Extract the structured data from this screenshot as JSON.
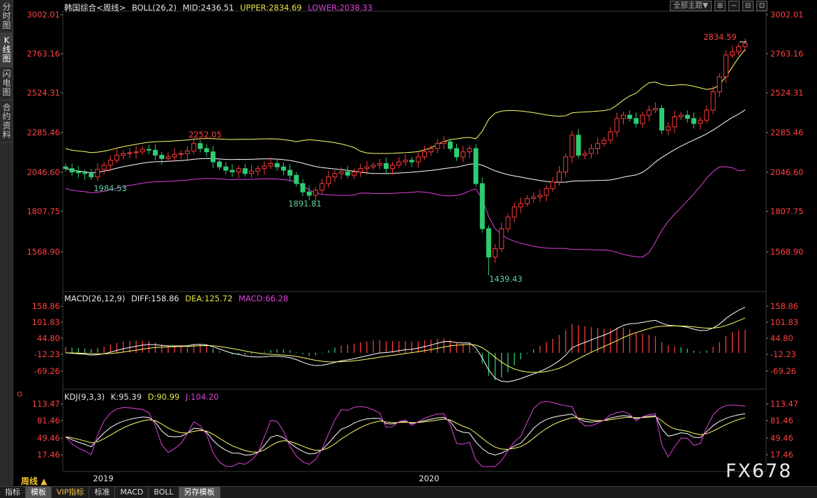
{
  "sidebar": {
    "tabs": [
      {
        "label": "分\n时\n图",
        "active": false
      },
      {
        "label": "K\n线\n图",
        "active": true
      },
      {
        "label": "闪\n电\n图",
        "active": false
      },
      {
        "label": "合\n约\n资\n料",
        "active": false
      }
    ]
  },
  "toolbar": {
    "theme_label": "全部主题",
    "theme_arrow": "▼",
    "icons": [
      "grid-icon",
      "minus-icon",
      "layout-icon",
      "maximize-icon"
    ],
    "icon_glyphs": [
      "⊞",
      "−",
      "⊟",
      "⊡"
    ]
  },
  "main_panel": {
    "instrument": "韩国综合",
    "period": "<周线>",
    "indicator": "BOLL(26,2)",
    "mid": "MID:2436.51",
    "upper": "UPPER:2834.69",
    "lower": "LOWER:2038.33",
    "y_ticks": [
      "3002.01",
      "2763.16",
      "2524.31",
      "2285.46",
      "2046.60",
      "1807.75",
      "1568.90"
    ],
    "annotations": [
      "2834.59",
      "2252.05",
      "1984.53",
      "1891.81",
      "1439.43"
    ]
  },
  "macd_panel": {
    "indicator": "MACD(26,12,9)",
    "diff": "DIFF:158.86",
    "dea": "DEA:125.72",
    "macd": "MACD:66.28",
    "y_ticks": [
      "158.86",
      "101.83",
      "44.80",
      "-12.23",
      "-69.26"
    ]
  },
  "kdj_panel": {
    "indicator": "KDJ(9,3,3)",
    "k": "K:95.39",
    "d": "D:90.99",
    "j": "J:104.20",
    "y_ticks": [
      "113.47",
      "81.46",
      "49.46",
      "17.46"
    ]
  },
  "x_axis": {
    "labels": [
      "2019",
      "2020"
    ]
  },
  "period_switch": {
    "label": "周线",
    "arrow": "▲"
  },
  "bottom_tabs": [
    {
      "label": "指标",
      "active": false,
      "vip": false
    },
    {
      "label": "模板",
      "active": true,
      "vip": false
    },
    {
      "label": "VIP指标",
      "active": false,
      "vip": true
    },
    {
      "label": "标准",
      "active": false,
      "vip": false
    },
    {
      "label": "MACD",
      "active": false,
      "vip": false
    },
    {
      "label": "BOLL",
      "active": false,
      "vip": false
    },
    {
      "label": "另存模板",
      "active": true,
      "vip": false
    }
  ],
  "watermark": "FX678",
  "colors": {
    "up": "#ff3b3b",
    "down": "#2ecc71",
    "mid": "#ffffff",
    "upper": "#ffff66",
    "lower": "#e040e0",
    "axis_text": "#ff4040",
    "grid": "#3a3a3a",
    "annotation_high": "#ff4040",
    "annotation_low": "#60d0a0"
  }
}
